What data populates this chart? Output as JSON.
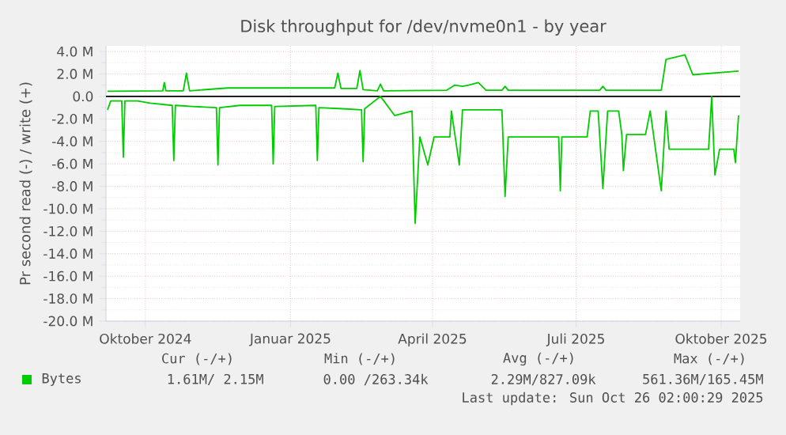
{
  "chart_data": {
    "type": "line",
    "title": "Disk throughput for /dev/nvme0n1 - by year",
    "ylabel": "Pr second read (-) / write (+)",
    "xlim": [
      "2024-09-06",
      "2025-10-13"
    ],
    "xticks": [
      {
        "value": "2024-10-01",
        "label": "Oktober 2024"
      },
      {
        "value": "2025-01-01",
        "label": "Januar 2025"
      },
      {
        "value": "2025-04-01",
        "label": "April 2025"
      },
      {
        "value": "2025-07-01",
        "label": "Juli 2025"
      },
      {
        "value": "2025-10-01",
        "label": "Oktober 2025"
      }
    ],
    "ylim": [
      -20,
      4.5
    ],
    "yticks": [
      {
        "value": 4,
        "label": "4.0 M"
      },
      {
        "value": 2,
        "label": "2.0 M"
      },
      {
        "value": 0,
        "label": "0.0"
      },
      {
        "value": -2,
        "label": "-2.0 M"
      },
      {
        "value": -4,
        "label": "-4.0 M"
      },
      {
        "value": -6,
        "label": "-6.0 M"
      },
      {
        "value": -8,
        "label": "-8.0 M"
      },
      {
        "value": -10,
        "label": "-10.0 M"
      },
      {
        "value": -12,
        "label": "-12.0 M"
      },
      {
        "value": -14,
        "label": "-14.0 M"
      },
      {
        "value": -16,
        "label": "-16.0 M"
      },
      {
        "value": -18,
        "label": "-18.0 M"
      },
      {
        "value": -20,
        "label": "-20.0 M"
      }
    ],
    "grid": true,
    "legend": "bottom",
    "ref_lines": [
      {
        "axis": "y",
        "value": 0,
        "color": "#000000"
      }
    ],
    "series": [
      {
        "name": "Bytes",
        "color": "#00cc00",
        "x": [
          "2024-09-07",
          "2024-10-12",
          "2024-10-13",
          "2024-10-14",
          "2024-10-25",
          "2024-10-27",
          "2024-10-29",
          "2024-11-22",
          "2025-01-29",
          "2025-01-31",
          "2025-02-02",
          "2025-02-12",
          "2025-02-14",
          "2025-02-16",
          "2025-02-25",
          "2025-02-27",
          "2025-03-01",
          "2025-04-10",
          "2025-04-15",
          "2025-04-20",
          "2025-04-24",
          "2025-04-30",
          "2025-05-05",
          "2025-05-15",
          "2025-05-17",
          "2025-05-19",
          "2025-07-16",
          "2025-07-18",
          "2025-07-20",
          "2025-08-24",
          "2025-08-27",
          "2025-09-08",
          "2025-09-13",
          "2025-10-12"
        ],
        "values": [
          0.46,
          0.5,
          1.24,
          0.5,
          0.5,
          2.07,
          0.5,
          0.75,
          0.75,
          2.07,
          0.7,
          0.7,
          2.3,
          0.6,
          0.5,
          1.1,
          0.5,
          0.55,
          1.0,
          0.9,
          1.0,
          1.24,
          0.55,
          0.55,
          0.9,
          0.55,
          0.55,
          0.9,
          0.55,
          0.55,
          3.3,
          3.7,
          1.93,
          2.25
        ]
      },
      {
        "color": "#00cc00",
        "x": [
          "2024-09-07",
          "2024-09-09",
          "2024-09-16",
          "2024-09-17",
          "2024-09-18",
          "2024-09-26",
          "2024-10-04",
          "2024-10-18",
          "2024-10-19",
          "2024-10-20",
          "2024-10-31",
          "2024-11-15",
          "2024-11-16",
          "2024-11-17",
          "2024-11-30",
          "2024-12-20",
          "2024-12-21",
          "2024-12-22",
          "2025-01-17",
          "2025-01-18",
          "2025-01-19",
          "2025-02-03",
          "2025-02-15",
          "2025-02-16",
          "2025-02-17",
          "2025-02-27",
          "2025-03-08",
          "2025-03-19",
          "2025-03-21",
          "2025-03-24",
          "2025-03-29",
          "2025-04-02",
          "2025-04-12",
          "2025-04-13",
          "2025-04-18",
          "2025-04-20",
          "2025-05-15",
          "2025-05-17",
          "2025-05-19",
          "2025-06-20",
          "2025-06-21",
          "2025-06-22",
          "2025-07-08",
          "2025-07-10",
          "2025-07-15",
          "2025-07-18",
          "2025-07-21",
          "2025-07-28",
          "2025-07-30",
          "2025-07-31",
          "2025-08-02",
          "2025-08-14",
          "2025-08-17",
          "2025-08-24",
          "2025-08-27",
          "2025-08-29",
          "2025-09-23",
          "2025-09-25",
          "2025-09-27",
          "2025-09-30",
          "2025-10-09",
          "2025-10-10",
          "2025-10-12"
        ],
        "values": [
          -1.2,
          -0.4,
          -0.4,
          -5.4,
          -0.4,
          -0.4,
          -0.6,
          -0.8,
          -5.7,
          -0.8,
          -0.9,
          -1.0,
          -6.1,
          -1.0,
          -0.8,
          -0.8,
          -6.0,
          -0.9,
          -0.8,
          -5.7,
          -1.0,
          -1.1,
          -1.2,
          -5.8,
          -1.1,
          0.0,
          -1.7,
          -1.3,
          -11.3,
          -3.6,
          -6.1,
          -3.6,
          -3.6,
          -1.3,
          -6.1,
          -1.2,
          -1.2,
          -8.9,
          -3.6,
          -3.6,
          -8.4,
          -3.6,
          -3.6,
          -1.3,
          -1.3,
          -8.2,
          -1.3,
          -1.3,
          -3.4,
          -6.6,
          -3.4,
          -3.4,
          -1.3,
          -8.4,
          -1.3,
          -4.7,
          -4.7,
          0.0,
          -7.0,
          -4.7,
          -4.7,
          -5.9,
          -1.7
        ]
      }
    ],
    "annotations": [
      "Cur (-/+)",
      "Min (-/+)",
      "Avg (-/+)",
      "Max (-/+)",
      "1.61M/  2.15M",
      "0.00 /263.34k",
      "2.29M/827.09k",
      "561.36M/165.45M",
      "Last update: Sun Oct 26 02:00:29 2025"
    ]
  }
}
